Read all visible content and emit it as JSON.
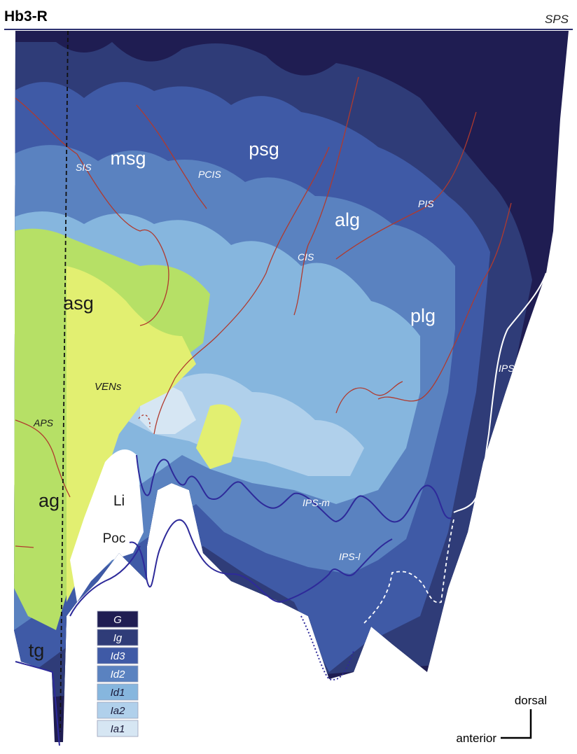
{
  "title": "Hb3-R",
  "corner_label": "SPS",
  "colors": {
    "G": "#1f1d52",
    "Ig": "#2f3c78",
    "Id3": "#3f5aa6",
    "Id2": "#5a82c0",
    "Id1": "#86b6de",
    "Ia2": "#b0d0eb",
    "Ia1": "#d6e6f3",
    "ven_yellow": "#e2ef71",
    "ven_green": "#b6e066",
    "sulcus_line": "#b03a2e",
    "boundary_line": "#2e2a9a"
  },
  "regions": {
    "msg": "msg",
    "psg": "psg",
    "alg": "alg",
    "asg": "asg",
    "plg": "plg",
    "ag": "ag",
    "tg": "tg",
    "li": "Li",
    "poc": "Poc"
  },
  "sulci": {
    "sis": "SIS",
    "pcis": "PCIS",
    "cis": "CIS",
    "pis": "PIS",
    "aps": "APS",
    "ips": "IPS",
    "ips_m": "IPS-m",
    "ips_l": "IPS-l"
  },
  "vens": "VENs",
  "legend": [
    {
      "label": "G",
      "color": "#1f1d52",
      "text_color": "#ffffff"
    },
    {
      "label": "Ig",
      "color": "#2f3c78",
      "text_color": "#ffffff"
    },
    {
      "label": "Id3",
      "color": "#3f5aa6",
      "text_color": "#ffffff"
    },
    {
      "label": "Id2",
      "color": "#5a82c0",
      "text_color": "#ffffff"
    },
    {
      "label": "Id1",
      "color": "#86b6de",
      "text_color": "#1a1a3a"
    },
    {
      "label": "Ia2",
      "color": "#b0d0eb",
      "text_color": "#1a1a3a"
    },
    {
      "label": "Ia1",
      "color": "#d6e6f3",
      "text_color": "#1a1a3a"
    }
  ],
  "orientation": {
    "vertical": "dorsal",
    "horizontal": "anterior"
  }
}
